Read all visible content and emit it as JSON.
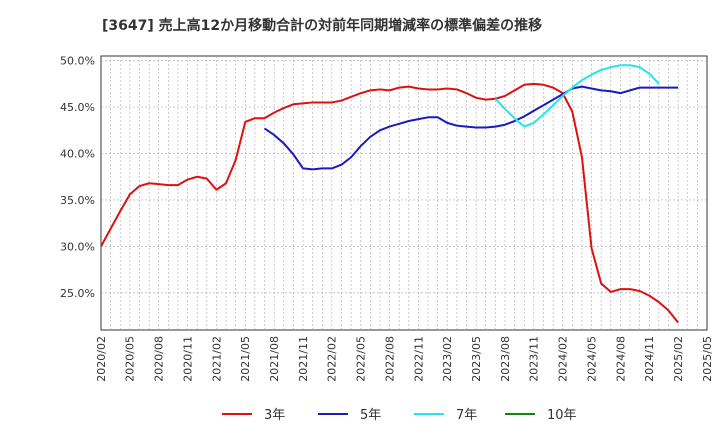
{
  "chart_data": {
    "type": "line",
    "title": "[3647]  売上高12か月移動合計の対前年同期増減率の標準偏差の推移",
    "ylim": [
      21.0,
      50.5
    ],
    "yticks": [
      25.0,
      30.0,
      35.0,
      40.0,
      45.0,
      50.0
    ],
    "ytick_labels": [
      "25.0%",
      "30.0%",
      "35.0%",
      "40.0%",
      "45.0%",
      "50.0%"
    ],
    "xtick_labels": [
      "2020/02",
      "2020/05",
      "2020/08",
      "2020/11",
      "2021/02",
      "2021/05",
      "2021/08",
      "2021/11",
      "2022/02",
      "2022/05",
      "2022/08",
      "2022/11",
      "2023/02",
      "2023/05",
      "2023/08",
      "2023/11",
      "2024/02",
      "2024/05",
      "2024/08",
      "2024/11",
      "2025/02",
      "2025/05"
    ],
    "x_count": 64,
    "grid": true,
    "legend_position": "bottom",
    "series": [
      {
        "name": "3年",
        "color": "#dd1111",
        "start_index": 0,
        "values": [
          30.0,
          31.9,
          33.8,
          35.6,
          36.5,
          36.8,
          36.7,
          36.6,
          36.6,
          37.2,
          37.5,
          37.3,
          36.1,
          36.8,
          39.3,
          43.4,
          43.8,
          43.8,
          44.4,
          44.9,
          45.3,
          45.4,
          45.5,
          45.5,
          45.5,
          45.7,
          46.1,
          46.5,
          46.8,
          46.9,
          46.8,
          47.1,
          47.2,
          47.0,
          46.9,
          46.9,
          47.0,
          46.9,
          46.5,
          46.0,
          45.8,
          45.9,
          46.2,
          46.8,
          47.4,
          47.5,
          47.4,
          47.1,
          46.5,
          44.5,
          39.6,
          29.8,
          26.0,
          25.1,
          25.4,
          25.4,
          25.2,
          24.7,
          24.0,
          23.1,
          21.8
        ]
      },
      {
        "name": "5年",
        "color": "#1a1abf",
        "start_index": 17,
        "values": [
          42.7,
          42.0,
          41.1,
          39.9,
          38.4,
          38.3,
          38.4,
          38.4,
          38.8,
          39.6,
          40.8,
          41.8,
          42.5,
          42.9,
          43.2,
          43.5,
          43.7,
          43.9,
          43.9,
          43.3,
          43.0,
          42.9,
          42.8,
          42.8,
          42.9,
          43.1,
          43.5,
          44.0,
          44.6,
          45.2,
          45.8,
          46.4,
          47.0,
          47.2,
          47.0,
          46.8,
          46.7,
          46.5,
          46.8,
          47.1,
          47.1,
          47.1,
          47.1,
          47.1
        ]
      },
      {
        "name": "7年",
        "color": "#22e5ee",
        "start_index": 41,
        "values": [
          45.9,
          44.8,
          43.8,
          42.9,
          43.3,
          44.2,
          45.2,
          46.2,
          47.1,
          47.9,
          48.5,
          49.0,
          49.3,
          49.5,
          49.5,
          49.3,
          48.6,
          47.5
        ]
      },
      {
        "name": "10年",
        "color": "#118811",
        "start_index": 0,
        "values": []
      }
    ]
  }
}
